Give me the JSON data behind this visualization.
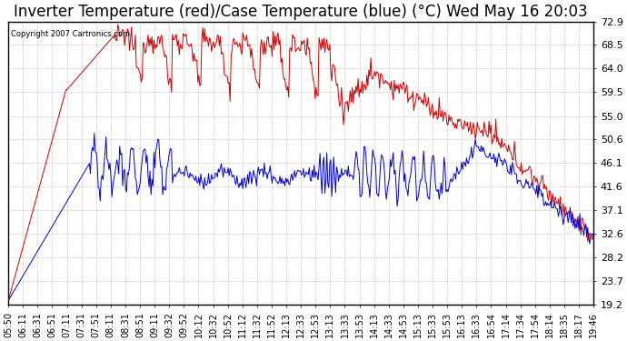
{
  "title": "Inverter Temperature (red)/Case Temperature (blue) (°C) Wed May 16 20:03",
  "copyright": "Copyright 2007 Cartronics.com",
  "ylim": [
    19.2,
    72.9
  ],
  "yticks": [
    19.2,
    23.7,
    28.2,
    32.6,
    37.1,
    41.6,
    46.1,
    50.6,
    55.0,
    59.5,
    64.0,
    68.5,
    72.9
  ],
  "background_color": "#ffffff",
  "grid_color": "#aaaaaa",
  "plot_bg_color": "#ffffff",
  "red_color": "#cc0000",
  "blue_color": "#0000cc",
  "title_fontsize": 12,
  "xlabel_fontsize": 7,
  "ylabel_fontsize": 8,
  "xtick_labels": [
    "05:50",
    "06:11",
    "06:31",
    "06:51",
    "07:11",
    "07:31",
    "07:51",
    "08:11",
    "08:31",
    "08:51",
    "09:11",
    "09:32",
    "09:52",
    "10:12",
    "10:32",
    "10:52",
    "11:12",
    "11:32",
    "11:52",
    "12:13",
    "12:33",
    "12:53",
    "13:13",
    "13:33",
    "13:53",
    "14:13",
    "14:33",
    "14:53",
    "15:13",
    "15:33",
    "15:53",
    "16:13",
    "16:33",
    "16:54",
    "17:14",
    "17:34",
    "17:54",
    "18:14",
    "18:35",
    "18:17",
    "19:46"
  ]
}
